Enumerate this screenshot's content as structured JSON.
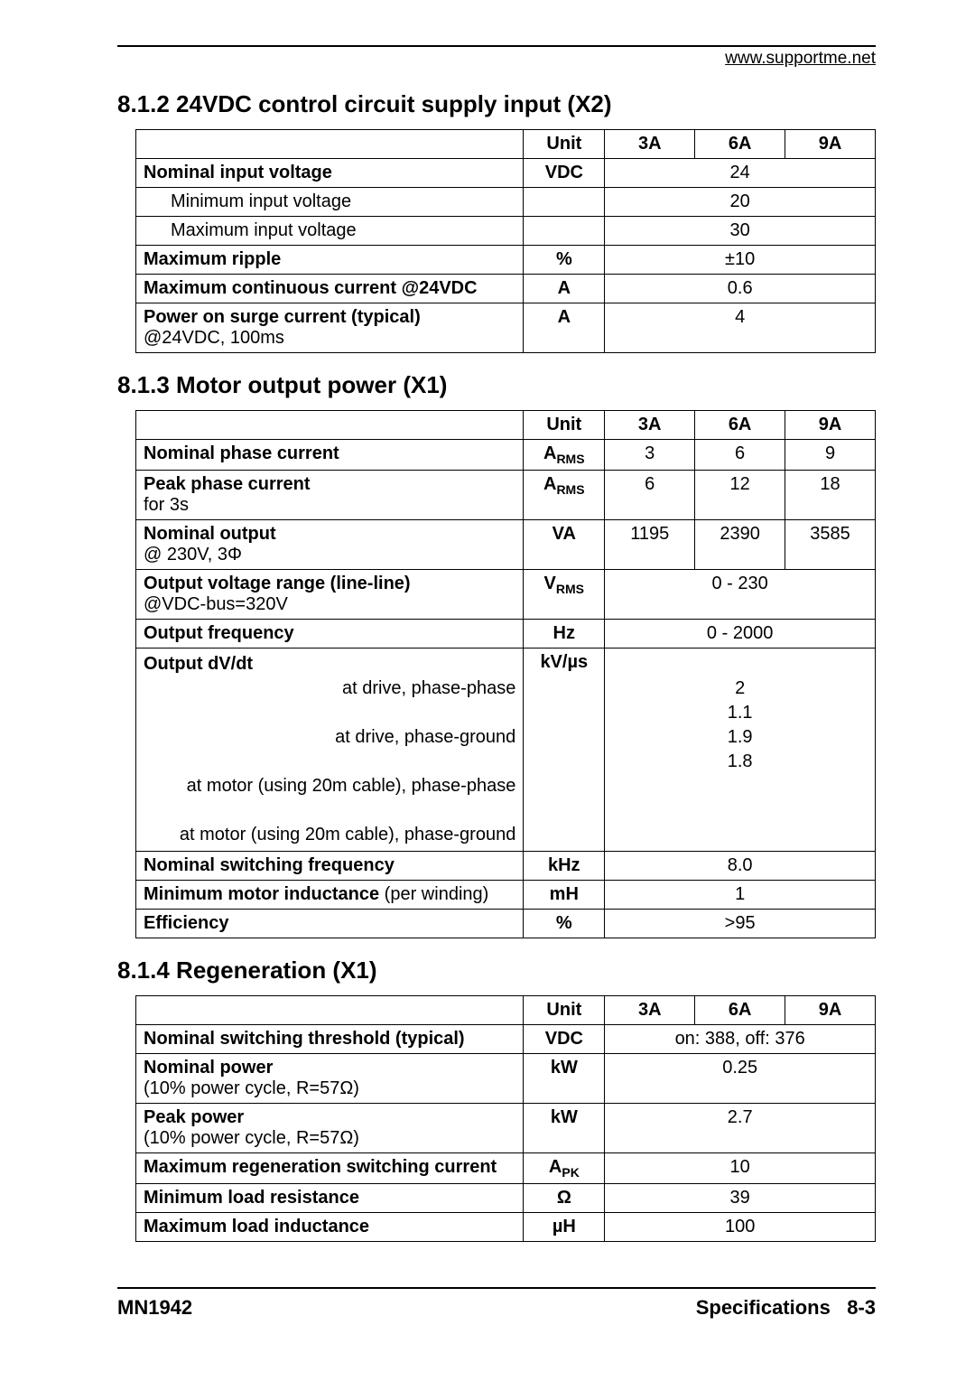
{
  "header_url": "www.supportme.net",
  "section812": {
    "heading": "8.1.2  24VDC control circuit supply input (X2)",
    "columns": [
      "",
      "Unit",
      "3A",
      "6A",
      "9A"
    ],
    "rows": [
      {
        "param": "Nominal input voltage",
        "bold": true,
        "unit": "VDC",
        "span": true,
        "val": "24"
      },
      {
        "param": "Minimum input voltage",
        "indent": true,
        "unit": "",
        "span": true,
        "val": "20"
      },
      {
        "param": "Maximum input voltage",
        "indent": true,
        "unit": "",
        "span": true,
        "val": "30"
      },
      {
        "param": "Maximum ripple",
        "bold": true,
        "unit": "%",
        "span": true,
        "val": "±10"
      },
      {
        "param": "Maximum continuous current @24VDC",
        "bold": true,
        "unit": "A",
        "span": true,
        "val": "0.6"
      },
      {
        "param": "Power on surge current (typical)",
        "sub": "@24VDC, 100ms",
        "bold": true,
        "unit": "A",
        "span": true,
        "val": "4"
      }
    ]
  },
  "section813": {
    "heading": "8.1.3  Motor output power (X1)",
    "columns": [
      "",
      "Unit",
      "3A",
      "6A",
      "9A"
    ],
    "rows": [
      {
        "param": "Nominal phase current",
        "bold": true,
        "unit_html": "A<sub>RMS</sub>",
        "vals": [
          "3",
          "6",
          "9"
        ]
      },
      {
        "param": "Peak phase current",
        "sub": "for 3s",
        "bold": true,
        "unit_html": "A<sub>RMS</sub>",
        "vals": [
          "6",
          "12",
          "18"
        ]
      },
      {
        "param": "Nominal output",
        "sub": "@ 230V, 3Φ",
        "bold": true,
        "unit": "VA",
        "vals": [
          "1195",
          "2390",
          "3585"
        ]
      },
      {
        "param": "Output voltage range (line-line)",
        "sub": "@VDC-bus=320V",
        "bold": true,
        "unit_html": "V<sub>RMS</sub>",
        "span": true,
        "val": "0 - 230"
      },
      {
        "param": "Output frequency",
        "bold": true,
        "unit": "Hz",
        "span": true,
        "val": "0 - 2000"
      },
      {
        "param_multi": true,
        "bold": true,
        "param_head": "Output dV/dt",
        "param_lines": [
          "at drive, phase-phase",
          "at drive, phase-ground",
          "at motor (using 20m cable), phase-phase",
          "at motor (using 20m cable), phase-ground"
        ],
        "unit": "kV/µs",
        "span": true,
        "val_lines": [
          "",
          "2",
          "1.1",
          "1.9",
          "1.8"
        ]
      },
      {
        "param": "Nominal switching frequency",
        "bold": true,
        "unit": "kHz",
        "span": true,
        "val": "8.0"
      },
      {
        "param_mixed": "Minimum motor inductance",
        "param_mixed_tail": " (per winding)",
        "unit": "mH",
        "span": true,
        "val": "1"
      },
      {
        "param": "Efficiency",
        "bold": true,
        "unit": "%",
        "span": true,
        "val": ">95"
      }
    ]
  },
  "section814": {
    "heading": "8.1.4  Regeneration (X1)",
    "columns": [
      "",
      "Unit",
      "3A",
      "6A",
      "9A"
    ],
    "rows": [
      {
        "param": "Nominal switching threshold (typical)",
        "bold": true,
        "unit": "VDC",
        "span": true,
        "val": "on: 388, off: 376"
      },
      {
        "param": "Nominal power",
        "sub": "(10% power cycle, R=57Ω)",
        "bold": true,
        "unit": "kW",
        "span": true,
        "val": "0.25"
      },
      {
        "param": "Peak power",
        "sub": "(10% power cycle, R=57Ω)",
        "bold": true,
        "unit": "kW",
        "span": true,
        "val": "2.7"
      },
      {
        "param": "Maximum regeneration switching current",
        "bold": true,
        "unit_html": "A<sub>PK</sub>",
        "span": true,
        "val": "10"
      },
      {
        "param": "Minimum load resistance",
        "bold": true,
        "unit": "Ω",
        "span": true,
        "val": "39"
      },
      {
        "param": "Maximum load inductance",
        "bold": true,
        "unit": "µH",
        "span": true,
        "val": "100"
      }
    ]
  },
  "footer": {
    "left": "MN1942",
    "right_label": "Specifications",
    "right_page": "8-3"
  }
}
